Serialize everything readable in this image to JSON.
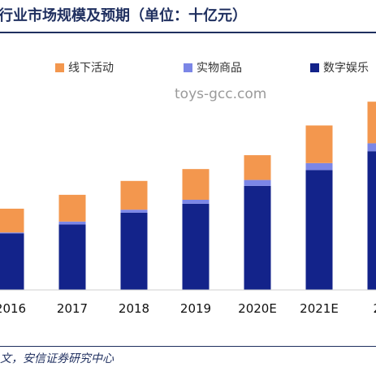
{
  "title": "行业市场规模及预期（单位：十亿元）",
  "source": "文，安信证券研究中心",
  "watermark": "toys-gcc.com",
  "chart_data": {
    "type": "bar",
    "stacked": true,
    "categories": [
      "2016",
      "2017",
      "2018",
      "2019",
      "2020E",
      "2021E",
      "20"
    ],
    "series": [
      {
        "name": "数字娱乐",
        "color": "#13238a",
        "values": [
          57,
          66,
          78,
          87,
          105,
          121,
          140
        ]
      },
      {
        "name": "实物商品",
        "color": "#7b86e6",
        "values": [
          1,
          3,
          3,
          4,
          6,
          7,
          8
        ]
      },
      {
        "name": "线下活动",
        "color": "#f3974e",
        "values": [
          24,
          27,
          29,
          31,
          25,
          38,
          42
        ]
      }
    ],
    "legend_position": "top",
    "grid": false
  }
}
